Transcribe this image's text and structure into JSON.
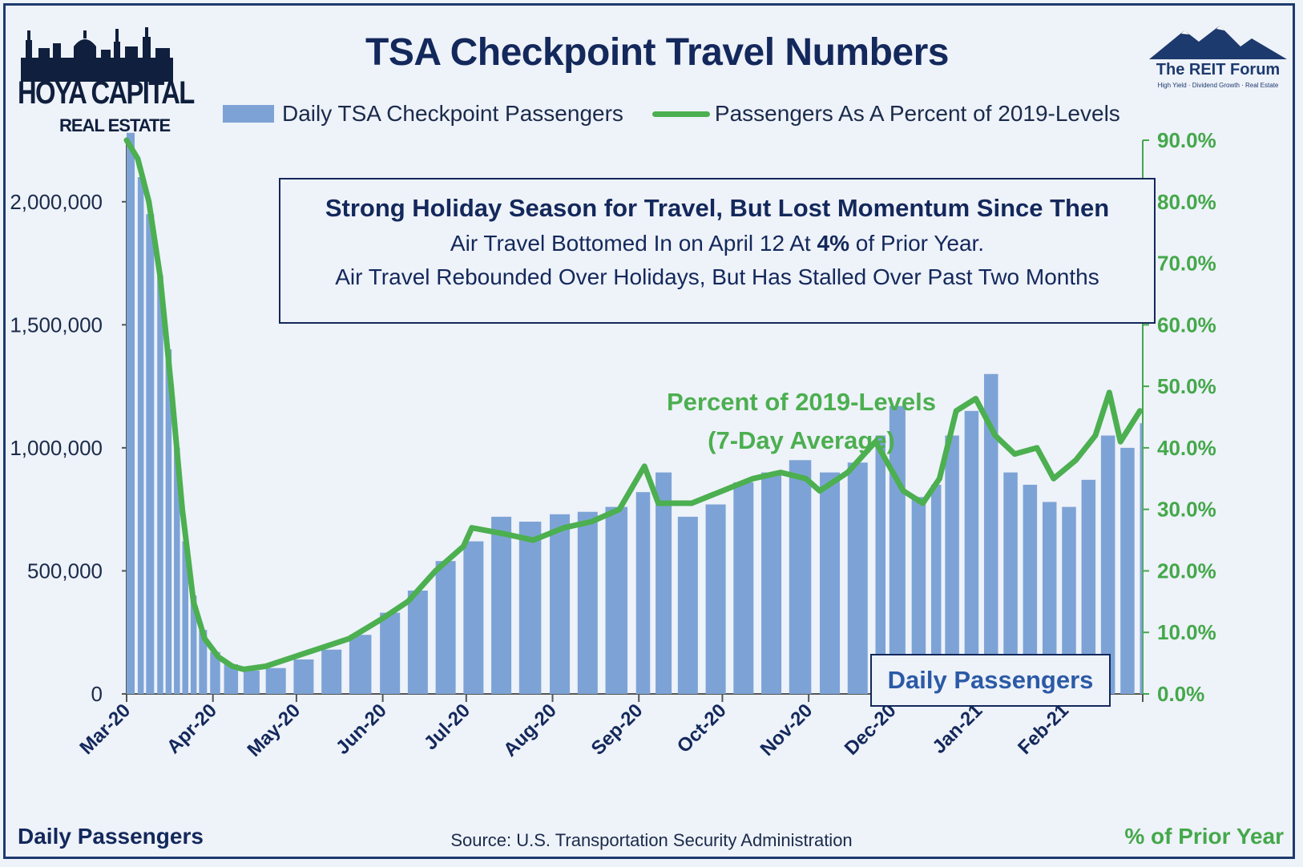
{
  "title": "TSA Checkpoint Travel Numbers",
  "logo_left": {
    "brand": "HOYA CAPITAL",
    "sub": "REAL ESTATE"
  },
  "logo_right": {
    "name": "The REIT Forum",
    "tagline": "High Yield · Dividend Growth · Real Estate"
  },
  "legend": {
    "bars_label": "Daily TSA Checkpoint Passengers",
    "line_label": "Passengers As A Percent of 2019-Levels"
  },
  "annotation": {
    "heading": "Strong Holiday Season for Travel, But Lost Momentum Since Then",
    "line1_pre": "Air Travel Bottomed In on April 12 At ",
    "line1_bold": "4%",
    "line1_post": " of Prior Year.",
    "line2": "Air Travel Rebounded Over Holidays, But Has Stalled Over Past Two Months"
  },
  "green_note": {
    "line1": "Percent of 2019-Levels",
    "line2": "(7-Day Average)"
  },
  "badge": "Daily Passengers",
  "source": "Source: U.S. Transportation Security Administration",
  "left_axis_title": "Daily Passengers",
  "right_axis_title": "% of Prior Year",
  "colors": {
    "bars": "#7da3d6",
    "line": "#4caf50",
    "line_daily": "#8fd18f",
    "navy": "#13285b",
    "right_axis": "#44a84a"
  },
  "chart_data": {
    "type": "bar",
    "x_tick_labels": [
      "Mar-20",
      "Apr-20",
      "May-20",
      "Jun-20",
      "Jul-20",
      "Aug-20",
      "Sep-20",
      "Oct-20",
      "Nov-20",
      "Dec-20",
      "Jan-21",
      "Feb-21"
    ],
    "y_left": {
      "min": 0,
      "max": 2250000,
      "ticks": [
        0,
        500000,
        1000000,
        1500000,
        2000000
      ],
      "tick_labels": [
        "0",
        "500,000",
        "1,000,000",
        "1,500,000",
        "2,000,000"
      ]
    },
    "y_right": {
      "min": 0,
      "max": 0.9,
      "ticks": [
        0,
        0.1,
        0.2,
        0.3,
        0.4,
        0.5,
        0.6,
        0.7,
        0.8,
        0.9
      ],
      "tick_labels": [
        "0.0%",
        "10.0%",
        "20.0%",
        "30.0%",
        "40.0%",
        "50.0%",
        "60.0%",
        "70.0%",
        "80.0%",
        "90.0%"
      ]
    },
    "series": [
      {
        "name": "Daily TSA Checkpoint Passengers",
        "type": "bar",
        "axis": "left",
        "points": [
          [
            "2020-03-01",
            2280000
          ],
          [
            "2020-03-05",
            2100000
          ],
          [
            "2020-03-08",
            1950000
          ],
          [
            "2020-03-12",
            1700000
          ],
          [
            "2020-03-15",
            1400000
          ],
          [
            "2020-03-18",
            1000000
          ],
          [
            "2020-03-21",
            620000
          ],
          [
            "2020-03-24",
            400000
          ],
          [
            "2020-03-27",
            260000
          ],
          [
            "2020-03-31",
            170000
          ],
          [
            "2020-04-05",
            120000
          ],
          [
            "2020-04-12",
            95000
          ],
          [
            "2020-04-20",
            105000
          ],
          [
            "2020-04-30",
            140000
          ],
          [
            "2020-05-10",
            180000
          ],
          [
            "2020-05-20",
            240000
          ],
          [
            "2020-05-31",
            330000
          ],
          [
            "2020-06-10",
            420000
          ],
          [
            "2020-06-20",
            540000
          ],
          [
            "2020-06-30",
            620000
          ],
          [
            "2020-07-10",
            720000
          ],
          [
            "2020-07-20",
            700000
          ],
          [
            "2020-07-31",
            730000
          ],
          [
            "2020-08-10",
            740000
          ],
          [
            "2020-08-20",
            760000
          ],
          [
            "2020-08-31",
            820000
          ],
          [
            "2020-09-07",
            900000
          ],
          [
            "2020-09-15",
            720000
          ],
          [
            "2020-09-25",
            770000
          ],
          [
            "2020-10-05",
            860000
          ],
          [
            "2020-10-15",
            900000
          ],
          [
            "2020-10-25",
            950000
          ],
          [
            "2020-11-05",
            900000
          ],
          [
            "2020-11-15",
            940000
          ],
          [
            "2020-11-25",
            1050000
          ],
          [
            "2020-11-30",
            1170000
          ],
          [
            "2020-12-08",
            800000
          ],
          [
            "2020-12-15",
            850000
          ],
          [
            "2020-12-20",
            1050000
          ],
          [
            "2020-12-27",
            1150000
          ],
          [
            "2021-01-03",
            1300000
          ],
          [
            "2021-01-10",
            900000
          ],
          [
            "2021-01-17",
            850000
          ],
          [
            "2021-01-24",
            780000
          ],
          [
            "2021-01-31",
            760000
          ],
          [
            "2021-02-07",
            870000
          ],
          [
            "2021-02-14",
            1050000
          ],
          [
            "2021-02-21",
            1000000
          ],
          [
            "2021-02-28",
            1100000
          ]
        ]
      },
      {
        "name": "Passengers As A Percent of 2019-Levels",
        "type": "line",
        "axis": "right",
        "note": "7-day average",
        "points": [
          [
            "2020-03-01",
            0.9
          ],
          [
            "2020-03-05",
            0.87
          ],
          [
            "2020-03-09",
            0.8
          ],
          [
            "2020-03-13",
            0.68
          ],
          [
            "2020-03-17",
            0.5
          ],
          [
            "2020-03-21",
            0.3
          ],
          [
            "2020-03-25",
            0.15
          ],
          [
            "2020-03-29",
            0.09
          ],
          [
            "2020-04-03",
            0.06
          ],
          [
            "2020-04-08",
            0.045
          ],
          [
            "2020-04-12",
            0.04
          ],
          [
            "2020-04-20",
            0.045
          ],
          [
            "2020-04-30",
            0.06
          ],
          [
            "2020-05-10",
            0.075
          ],
          [
            "2020-05-20",
            0.09
          ],
          [
            "2020-05-31",
            0.12
          ],
          [
            "2020-06-10",
            0.15
          ],
          [
            "2020-06-20",
            0.2
          ],
          [
            "2020-06-30",
            0.24
          ],
          [
            "2020-07-03",
            0.27
          ],
          [
            "2020-07-15",
            0.26
          ],
          [
            "2020-07-25",
            0.25
          ],
          [
            "2020-08-05",
            0.27
          ],
          [
            "2020-08-15",
            0.28
          ],
          [
            "2020-08-25",
            0.3
          ],
          [
            "2020-09-03",
            0.37
          ],
          [
            "2020-09-08",
            0.31
          ],
          [
            "2020-09-20",
            0.31
          ],
          [
            "2020-10-01",
            0.33
          ],
          [
            "2020-10-12",
            0.35
          ],
          [
            "2020-10-22",
            0.36
          ],
          [
            "2020-10-31",
            0.35
          ],
          [
            "2020-11-05",
            0.33
          ],
          [
            "2020-11-15",
            0.36
          ],
          [
            "2020-11-25",
            0.41
          ],
          [
            "2020-12-05",
            0.33
          ],
          [
            "2020-12-12",
            0.31
          ],
          [
            "2020-12-18",
            0.35
          ],
          [
            "2020-12-24",
            0.46
          ],
          [
            "2020-12-31",
            0.48
          ],
          [
            "2021-01-07",
            0.42
          ],
          [
            "2021-01-14",
            0.39
          ],
          [
            "2021-01-22",
            0.4
          ],
          [
            "2021-01-28",
            0.35
          ],
          [
            "2021-02-05",
            0.38
          ],
          [
            "2021-02-12",
            0.42
          ],
          [
            "2021-02-17",
            0.49
          ],
          [
            "2021-02-21",
            0.41
          ],
          [
            "2021-02-28",
            0.46
          ]
        ]
      }
    ]
  }
}
